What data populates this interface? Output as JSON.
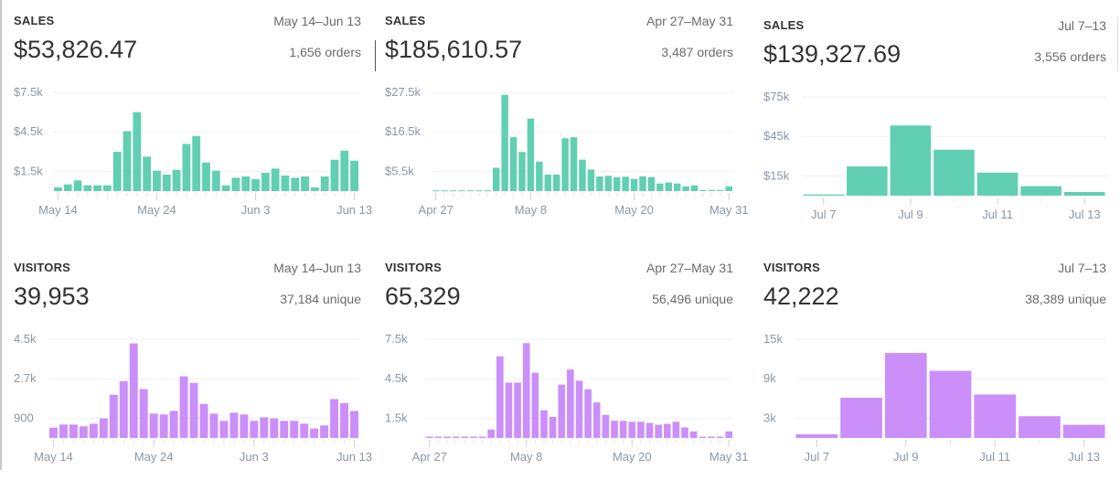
{
  "colors": {
    "sales": "#5ccdae",
    "visitors": "#c98bf9"
  },
  "panels": [
    {
      "title": "SALES",
      "range": "May 14–Jun 13",
      "value": "$53,826.47",
      "sub": "1,656 orders",
      "chart_data": {
        "type": "bar",
        "series": "sales",
        "yticks": [
          {
            "v": 1500,
            "label": "$1.5k"
          },
          {
            "v": 4500,
            "label": "$4.5k"
          },
          {
            "v": 7500,
            "label": "$7.5k"
          }
        ],
        "ylim": [
          0,
          7500
        ],
        "xticks": [
          {
            "index": 0,
            "label": "May 14"
          },
          {
            "index": 10,
            "label": "May 24"
          },
          {
            "index": 20,
            "label": "Jun 3"
          },
          {
            "index": 30,
            "label": "Jun 13"
          }
        ],
        "values": [
          280,
          510,
          810,
          440,
          440,
          440,
          2980,
          4550,
          6000,
          2610,
          1550,
          1250,
          1620,
          3580,
          4180,
          2170,
          1550,
          440,
          1010,
          1110,
          900,
          1390,
          1710,
          1180,
          1010,
          1110,
          280,
          1110,
          2380,
          3070,
          2310
        ]
      }
    },
    {
      "title": "SALES",
      "range": "Apr 27–May 31",
      "value": "$185,610.57",
      "sub": "3,487 orders",
      "chart_data": {
        "type": "bar",
        "series": "sales",
        "yticks": [
          {
            "v": 5500,
            "label": "$5.5k"
          },
          {
            "v": 16500,
            "label": "$16.5k"
          },
          {
            "v": 27500,
            "label": "$27.5k"
          }
        ],
        "ylim": [
          0,
          27500
        ],
        "xticks": [
          {
            "index": 0,
            "label": "Apr 27"
          },
          {
            "index": 11,
            "label": "May 8"
          },
          {
            "index": 23,
            "label": "May 20"
          },
          {
            "index": 34,
            "label": "May 31"
          }
        ],
        "values": [
          200,
          200,
          200,
          200,
          200,
          200,
          200,
          6500,
          26800,
          15000,
          10900,
          20200,
          8200,
          4600,
          4600,
          14700,
          15000,
          8750,
          6000,
          4100,
          4250,
          3900,
          4000,
          3400,
          4100,
          3900,
          2100,
          2400,
          2100,
          1300,
          1600,
          300,
          300,
          300,
          1300
        ]
      }
    },
    {
      "title": "SALES",
      "range": "Jul 7–13",
      "value": "$139,327.69",
      "sub": "3,556 orders",
      "chart_data": {
        "type": "bar",
        "series": "sales",
        "yticks": [
          {
            "v": 15000,
            "label": "$15k"
          },
          {
            "v": 45000,
            "label": "$45k"
          },
          {
            "v": 75000,
            "label": "$75k"
          }
        ],
        "ylim": [
          0,
          75000
        ],
        "xticks": [
          {
            "index": 0,
            "label": "Jul 7"
          },
          {
            "index": 2,
            "label": "Jul 9"
          },
          {
            "index": 4,
            "label": "Jul 11"
          },
          {
            "index": 6,
            "label": "Jul 13"
          }
        ],
        "values": [
          900,
          22200,
          53300,
          34900,
          17500,
          7200,
          2800
        ]
      }
    },
    {
      "title": "VISITORS",
      "range": "May 14–Jun 13",
      "value": "39,953",
      "sub": "37,184 unique",
      "chart_data": {
        "type": "bar",
        "series": "visitors",
        "yticks": [
          {
            "v": 900,
            "label": "900"
          },
          {
            "v": 2700,
            "label": "2.7k"
          },
          {
            "v": 4500,
            "label": "4.5k"
          }
        ],
        "ylim": [
          0,
          4500
        ],
        "xticks": [
          {
            "index": 0,
            "label": "May 14"
          },
          {
            "index": 10,
            "label": "May 24"
          },
          {
            "index": 20,
            "label": "Jun 3"
          },
          {
            "index": 30,
            "label": "Jun 13"
          }
        ],
        "values": [
          470,
          610,
          610,
          530,
          650,
          890,
          1970,
          2590,
          4310,
          2230,
          1110,
          1070,
          1230,
          2810,
          2510,
          1550,
          1110,
          780,
          1150,
          1070,
          780,
          940,
          890,
          780,
          780,
          650,
          430,
          570,
          1770,
          1590,
          1230
        ]
      }
    },
    {
      "title": "VISITORS",
      "range": "Apr 27–May 31",
      "value": "65,329",
      "sub": "56,496 unique",
      "chart_data": {
        "type": "bar",
        "series": "visitors",
        "yticks": [
          {
            "v": 1500,
            "label": "1.5k"
          },
          {
            "v": 4500,
            "label": "4.5k"
          },
          {
            "v": 7500,
            "label": "7.5k"
          }
        ],
        "ylim": [
          0,
          7500
        ],
        "xticks": [
          {
            "index": 0,
            "label": "Apr 27"
          },
          {
            "index": 11,
            "label": "May 8"
          },
          {
            "index": 23,
            "label": "May 20"
          },
          {
            "index": 34,
            "label": "May 31"
          }
        ],
        "values": [
          100,
          100,
          100,
          100,
          100,
          100,
          100,
          640,
          6200,
          4200,
          4200,
          7200,
          4950,
          2100,
          1600,
          4050,
          5200,
          4350,
          3700,
          2700,
          1750,
          1300,
          1300,
          1230,
          1230,
          1140,
          1000,
          1070,
          1230,
          800,
          500,
          100,
          100,
          100,
          500
        ]
      }
    },
    {
      "title": "VISITORS",
      "range": "Jul 7–13",
      "value": "42,222",
      "sub": "38,389 unique",
      "chart_data": {
        "type": "bar",
        "series": "visitors",
        "yticks": [
          {
            "v": 3000,
            "label": "3k"
          },
          {
            "v": 9000,
            "label": "9k"
          },
          {
            "v": 15000,
            "label": "15k"
          }
        ],
        "ylim": [
          0,
          15000
        ],
        "xticks": [
          {
            "index": 0,
            "label": "Jul 7"
          },
          {
            "index": 2,
            "label": "Jul 9"
          },
          {
            "index": 4,
            "label": "Jul 11"
          },
          {
            "index": 6,
            "label": "Jul 13"
          }
        ],
        "values": [
          550,
          6100,
          12900,
          10200,
          6600,
          3300,
          2000
        ]
      }
    }
  ]
}
